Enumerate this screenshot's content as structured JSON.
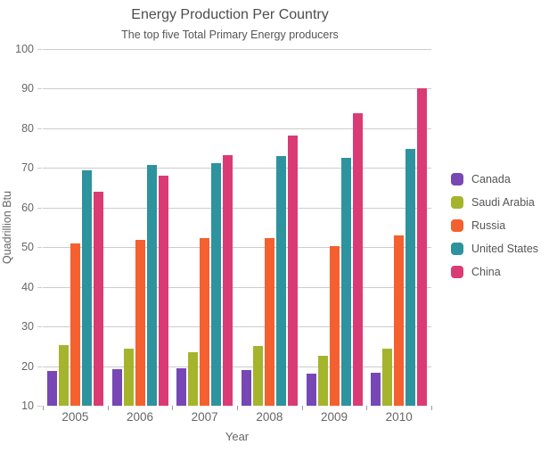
{
  "chart_data": {
    "type": "bar",
    "title": "Energy Production Per Country",
    "subtitle": "The top five Total Primary Energy producers",
    "xlabel": "Year",
    "ylabel": "Quadrillion Btu",
    "categories": [
      "2005",
      "2006",
      "2007",
      "2008",
      "2009",
      "2010"
    ],
    "series": [
      {
        "name": "Canada",
        "color": "#7747B5",
        "values": [
          18.7,
          19.2,
          19.5,
          19.1,
          18.2,
          18.3
        ]
      },
      {
        "name": "Saudi Arabia",
        "color": "#A4B42D",
        "values": [
          25.2,
          24.4,
          23.6,
          25.0,
          22.6,
          24.5
        ]
      },
      {
        "name": "Russia",
        "color": "#F4602F",
        "values": [
          50.9,
          51.9,
          52.4,
          52.3,
          50.3,
          53.0
        ]
      },
      {
        "name": "United States",
        "color": "#2D939E",
        "values": [
          69.4,
          70.7,
          71.3,
          73.1,
          72.5,
          74.7
        ]
      },
      {
        "name": "China",
        "color": "#DB3B74",
        "values": [
          63.9,
          68.1,
          73.2,
          78.2,
          83.8,
          90.2
        ]
      }
    ],
    "ylim": [
      10,
      100
    ],
    "ytick_step": 10,
    "grid": true,
    "legend_position": "right",
    "colors": {
      "title_text": "#4d4d4d",
      "subtitle_text": "#555555",
      "axis_text": "#666666",
      "gridline": "#cccccc",
      "tick": "#999999",
      "background": "#ffffff"
    }
  }
}
